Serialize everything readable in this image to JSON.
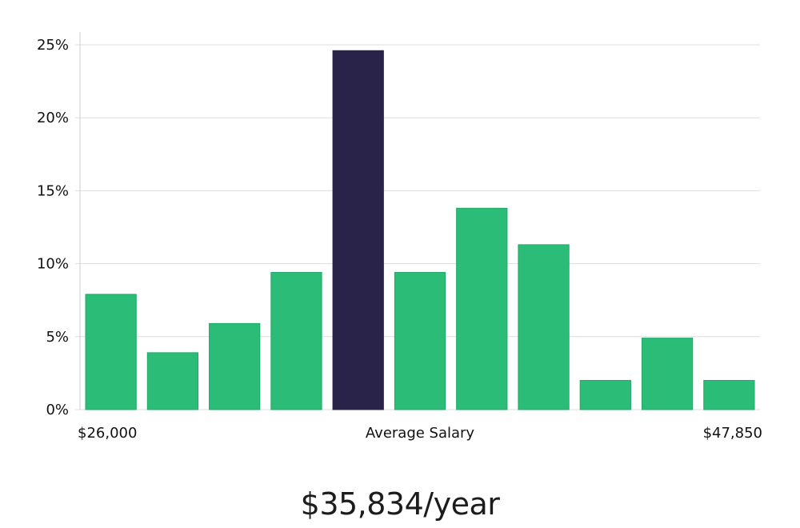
{
  "chart_data": {
    "type": "bar",
    "title": "",
    "xlabel": "Average Salary",
    "ylabel": "",
    "x_min_label": "$26,000",
    "x_max_label": "$47,850",
    "ylim": [
      0,
      25
    ],
    "yticks": [
      0,
      5,
      10,
      15,
      20,
      25
    ],
    "ytick_labels": [
      "0%",
      "5%",
      "10%",
      "15%",
      "20%",
      "25%"
    ],
    "values": [
      7.9,
      3.9,
      5.9,
      9.4,
      24.6,
      9.4,
      13.8,
      11.3,
      2.0,
      4.9,
      2.0
    ],
    "highlight_index": 4,
    "colors": {
      "bar": "#2bbd78",
      "bar_edge": "#22a868",
      "highlight": "#29234a",
      "grid": "#dddddd",
      "axis": "#cccccc"
    },
    "grid": true
  },
  "salary": {
    "average_text": "$35,834/year"
  }
}
